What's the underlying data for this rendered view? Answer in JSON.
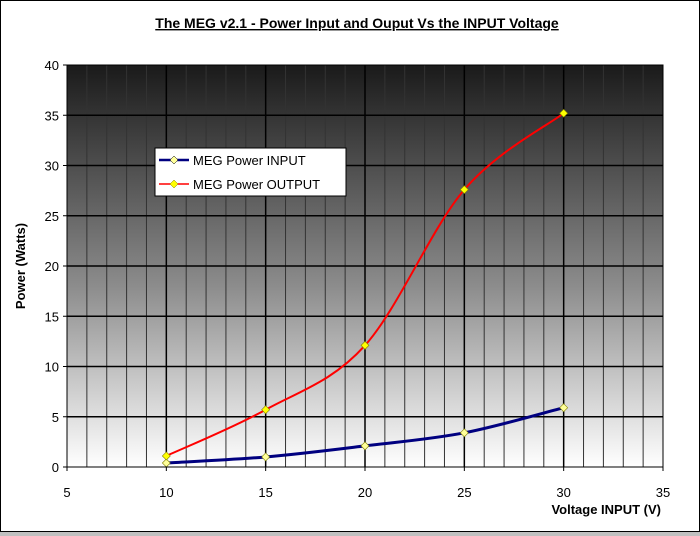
{
  "chart_data": {
    "type": "line",
    "title": "The MEG v2.1 - Power Input and Ouput Vs the INPUT Voltage",
    "xlabel": "Voltage INPUT (V)",
    "ylabel": "Power (Watts)",
    "xlim": [
      5,
      35
    ],
    "ylim": [
      0,
      40
    ],
    "x_ticks": [
      "5",
      "10",
      "15",
      "20",
      "25",
      "30",
      "35"
    ],
    "y_ticks": [
      "0",
      "5",
      "10",
      "15",
      "20",
      "25",
      "30",
      "35",
      "40"
    ],
    "grid": true,
    "legend_position": "upper-left",
    "series": [
      {
        "name": "MEG Power INPUT",
        "color": "#000080",
        "marker": "diamond",
        "x": [
          10,
          15,
          20,
          25,
          30
        ],
        "y": [
          0.4,
          1.0,
          2.1,
          3.4,
          5.9
        ]
      },
      {
        "name": "MEG Power OUTPUT",
        "color": "#ff0000",
        "marker": "diamond",
        "x": [
          10,
          15,
          20,
          25,
          30
        ],
        "y": [
          1.1,
          5.7,
          12.1,
          27.6,
          35.2
        ]
      }
    ]
  }
}
